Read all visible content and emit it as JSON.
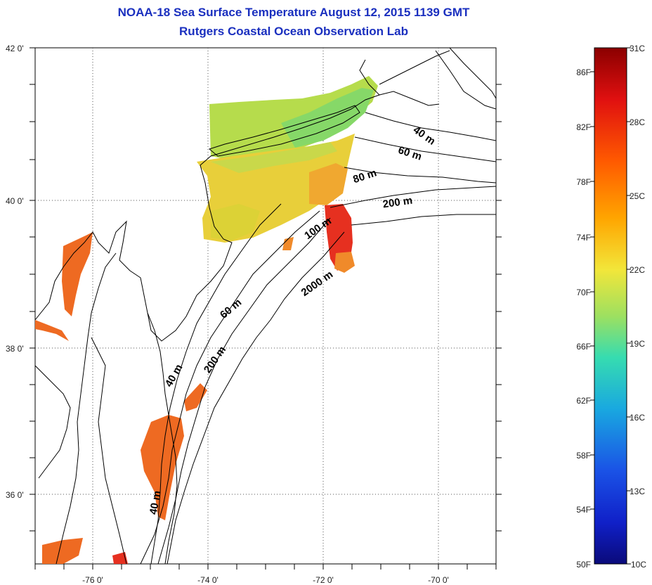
{
  "header": {
    "title": "NOAA-18 Sea Surface Temperature August 12, 2015 1139 GMT",
    "subtitle": "Rutgers Coastal Ocean Observation Lab"
  },
  "map": {
    "lat_labels": [
      "42 0'",
      "40 0'",
      "38 0'",
      "36 0'"
    ],
    "lon_labels": [
      "-76 0'",
      "-74 0'",
      "-72 0'",
      "-70 0'"
    ],
    "isobath_labels": [
      "40 m",
      "60 m",
      "80 m",
      "200 m",
      "100 m",
      "2000 m",
      "60 m",
      "200 m",
      "40 m",
      "40 m"
    ],
    "sst_palette": {
      "cool": "#9bd85a",
      "mid": "#e8d23a",
      "warm": "#f0b22a",
      "orange": "#ee6a22",
      "hot": "#e63020",
      "green": "#7ed868"
    }
  },
  "colorbar": {
    "fahrenheit_labels": [
      "86F",
      "82F",
      "78F",
      "74F",
      "70F",
      "66F",
      "62F",
      "58F",
      "54F",
      "50F"
    ],
    "celsius_labels": [
      "31C",
      "28C",
      "25C",
      "22C",
      "19C",
      "16C",
      "13C",
      "10C"
    ],
    "gradient_colors": [
      "#8b0000",
      "#e01010",
      "#ff5a00",
      "#ffa500",
      "#f2e63a",
      "#9de060",
      "#36dcb0",
      "#19a8e0",
      "#1a52e6",
      "#1020c8",
      "#0a0a7a"
    ]
  }
}
